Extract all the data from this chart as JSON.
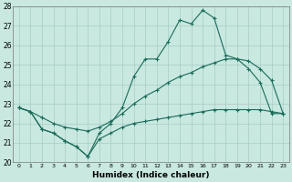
{
  "xlabel": "Humidex (Indice chaleur)",
  "xlim": [
    -0.5,
    23.5
  ],
  "ylim": [
    20,
    28
  ],
  "yticks": [
    20,
    21,
    22,
    23,
    24,
    25,
    26,
    27,
    28
  ],
  "xticks": [
    0,
    1,
    2,
    3,
    4,
    5,
    6,
    7,
    8,
    9,
    10,
    11,
    12,
    13,
    14,
    15,
    16,
    17,
    18,
    19,
    20,
    21,
    22,
    23
  ],
  "bg_color": "#c8e8e0",
  "grid_color": "#a8ccc4",
  "line_color": "#1a6b5a",
  "max_vals": [
    22.8,
    22.6,
    21.7,
    21.5,
    21.1,
    20.8,
    20.3,
    21.5,
    22.0,
    22.8,
    24.4,
    25.3,
    25.3,
    26.2,
    27.3,
    27.1,
    27.8,
    27.4,
    25.5,
    25.3,
    24.8,
    24.1,
    22.5,
    22.5
  ],
  "mean_vals": [
    22.8,
    22.6,
    22.3,
    22.0,
    21.8,
    21.7,
    21.6,
    21.8,
    22.1,
    22.5,
    23.0,
    23.4,
    23.7,
    24.1,
    24.4,
    24.6,
    24.9,
    25.1,
    25.3,
    25.3,
    25.2,
    24.8,
    24.2,
    22.5
  ],
  "min_vals": [
    22.8,
    22.6,
    21.7,
    21.5,
    21.1,
    20.8,
    20.3,
    21.2,
    21.5,
    21.8,
    22.0,
    22.1,
    22.2,
    22.3,
    22.4,
    22.5,
    22.6,
    22.7,
    22.7,
    22.7,
    22.7,
    22.7,
    22.6,
    22.5
  ]
}
